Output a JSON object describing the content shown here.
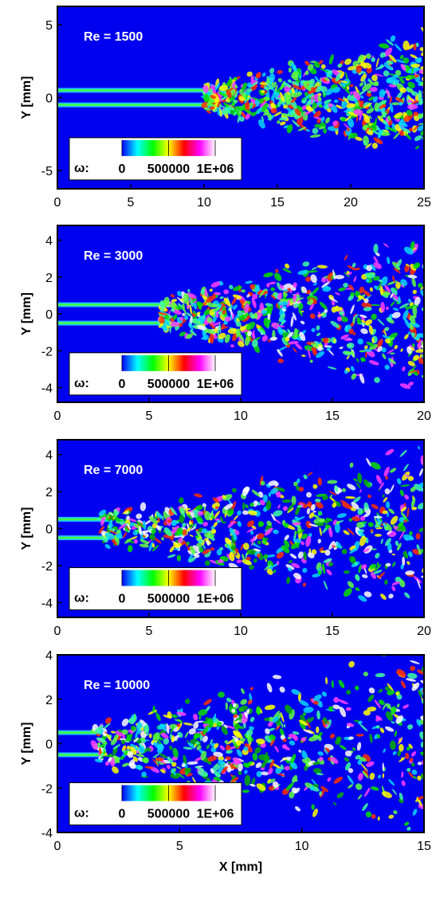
{
  "chart_data": [
    {
      "type": "contour",
      "annotation": "Re = 1500",
      "ylabel": "Y [mm]",
      "xlim": [
        0,
        25
      ],
      "xticks": [
        0,
        5,
        10,
        15,
        20,
        25
      ],
      "ylim": [
        -6.25,
        6.25
      ],
      "yticks": [
        -5,
        0,
        5
      ],
      "colorbar": {
        "label": "ω:",
        "lim": [
          0,
          1000000
        ],
        "ticks": [
          0,
          500000,
          {
            "value": 1000000,
            "label": "1E+06"
          }
        ],
        "colormap": [
          "#0000ff",
          "#00ffff",
          "#00ff00",
          "#ffff00",
          "#ff0000",
          "#ff00ff",
          "#ffffff"
        ]
      }
    },
    {
      "type": "contour",
      "annotation": "Re = 3000",
      "ylabel": "Y [mm]",
      "xlim": [
        0,
        20
      ],
      "xticks": [
        0,
        5,
        10,
        15,
        20
      ],
      "ylim": [
        -4.8,
        4.8
      ],
      "yticks": [
        -4,
        -2,
        0,
        2,
        4
      ],
      "colorbar": {
        "label": "ω:",
        "lim": [
          0,
          1000000
        ],
        "ticks": [
          0,
          500000,
          {
            "value": 1000000,
            "label": "1E+06"
          }
        ],
        "colormap": [
          "#0000ff",
          "#00ffff",
          "#00ff00",
          "#ffff00",
          "#ff0000",
          "#ff00ff",
          "#ffffff"
        ]
      }
    },
    {
      "type": "contour",
      "annotation": "Re = 7000",
      "ylabel": "Y [mm]",
      "xlim": [
        0,
        20
      ],
      "xticks": [
        0,
        5,
        10,
        15,
        20
      ],
      "ylim": [
        -4.8,
        4.8
      ],
      "yticks": [
        -4,
        -2,
        0,
        2,
        4
      ],
      "colorbar": {
        "label": "ω:",
        "lim": [
          0,
          1000000
        ],
        "ticks": [
          0,
          500000,
          {
            "value": 1000000,
            "label": "1E+06"
          }
        ],
        "colormap": [
          "#0000ff",
          "#00ffff",
          "#00ff00",
          "#ffff00",
          "#ff0000",
          "#ff00ff",
          "#ffffff"
        ]
      }
    },
    {
      "type": "contour",
      "annotation": "Re = 10000",
      "ylabel": "Y [mm]",
      "xlabel": "X [mm]",
      "xlim": [
        0,
        15
      ],
      "xticks": [
        0,
        5,
        10,
        15
      ],
      "ylim": [
        -4,
        4
      ],
      "yticks": [
        -4,
        -2,
        0,
        2,
        4
      ],
      "colorbar": {
        "label": "ω:",
        "lim": [
          0,
          1000000
        ],
        "ticks": [
          0,
          500000,
          {
            "value": 1000000,
            "label": "1E+06"
          }
        ],
        "colormap": [
          "#0000ff",
          "#00ffff",
          "#00ff00",
          "#ffff00",
          "#ff0000",
          "#ff00ff",
          "#ffffff"
        ]
      }
    }
  ]
}
